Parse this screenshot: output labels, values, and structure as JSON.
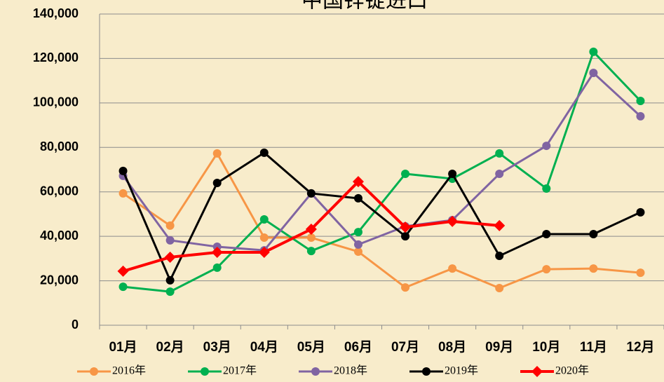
{
  "chart_data": {
    "type": "line",
    "title": "中国锌锭进口",
    "categories": [
      "01月",
      "02月",
      "03月",
      "04月",
      "05月",
      "06月",
      "07月",
      "08月",
      "09月",
      "10月",
      "11月",
      "12月"
    ],
    "series": [
      {
        "name": "2016年",
        "color": "#f79646",
        "values": [
          59300,
          44800,
          77300,
          39400,
          39400,
          33100,
          17000,
          25500,
          16700,
          25200,
          25500,
          23600
        ]
      },
      {
        "name": "2017年",
        "color": "#00b050",
        "values": [
          17300,
          15100,
          25900,
          47600,
          33400,
          41900,
          68100,
          65900,
          77300,
          61500,
          123000,
          100900
        ]
      },
      {
        "name": "2018年",
        "color": "#8064a2",
        "values": [
          67200,
          38200,
          35300,
          33700,
          59300,
          36300,
          44500,
          47300,
          68100,
          80700,
          113500,
          94000
        ]
      },
      {
        "name": "2019年",
        "color": "#000000",
        "values": [
          69400,
          20200,
          64000,
          77600,
          59300,
          57100,
          40000,
          68100,
          31200,
          41000,
          41000,
          50800
        ]
      },
      {
        "name": "2020年",
        "color": "#ff0000",
        "values": [
          24300,
          30600,
          32800,
          32800,
          43200,
          64600,
          44100,
          46700,
          44800,
          null,
          null,
          null
        ]
      }
    ],
    "ylim": [
      0,
      140000
    ],
    "yticks": [
      0,
      {
        "value": 20000,
        "label": "20,000"
      },
      {
        "value": 40000,
        "label": "40,000"
      },
      {
        "value": 60000,
        "label": "60,000"
      },
      {
        "value": 80000,
        "label": "80,000"
      },
      {
        "value": 100000,
        "label": "100,000"
      },
      {
        "value": 120000,
        "label": "120,000"
      },
      {
        "value": 140000,
        "label": "140,000"
      }
    ],
    "grid": true,
    "legend": "bottom"
  }
}
